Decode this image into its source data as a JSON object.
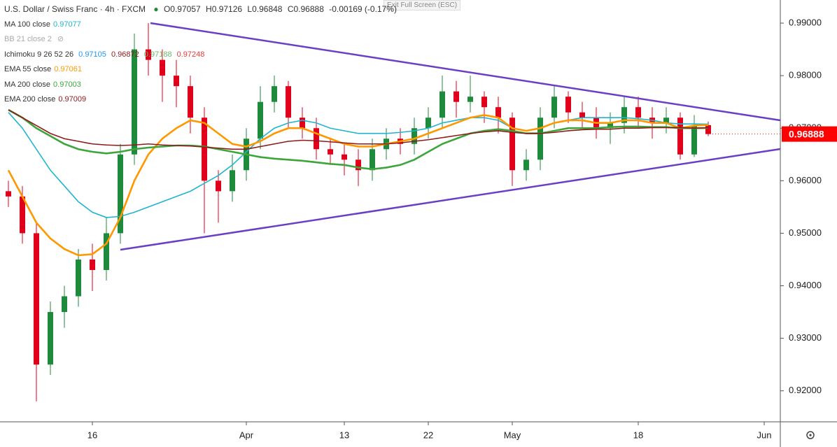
{
  "chart_data": {
    "type": "candlestick",
    "title": "U.S. Dollar / Swiss Franc · 4h · FXCM",
    "header_open": "O0.97057",
    "header_high": "H0.97126",
    "header_low": "L0.96848",
    "header_close": "C0.96888",
    "header_change": "-0.00169 (-0.17%)",
    "notice": "Exit Full Screen (ESC)",
    "up_color": "#1e8a3b",
    "down_color": "#e0001b",
    "categories": [
      null,
      null,
      null,
      null,
      null,
      null,
      "16",
      null,
      null,
      null,
      null,
      null,
      null,
      null,
      null,
      null,
      null,
      "Apr",
      null,
      null,
      null,
      null,
      null,
      null,
      "13",
      null,
      null,
      null,
      null,
      null,
      "22",
      null,
      null,
      null,
      null,
      null,
      "May",
      null,
      null,
      null,
      null,
      null,
      null,
      null,
      null,
      "18",
      null,
      null,
      null,
      null,
      null,
      null,
      null,
      null,
      "Jun"
    ],
    "open": [
      0.958,
      0.957,
      0.95,
      0.925,
      0.935,
      0.938,
      0.945,
      0.943,
      0.95,
      0.965,
      0.985,
      0.983,
      0.98,
      0.978,
      0.972,
      0.96,
      0.958,
      0.962,
      0.968,
      0.975,
      0.978,
      0.972,
      0.97,
      0.966,
      0.965,
      0.964,
      0.962,
      0.966,
      0.968,
      0.967,
      0.97,
      0.972,
      0.977,
      0.975,
      0.976,
      0.974,
      0.972,
      0.962,
      0.964,
      0.972,
      0.976,
      0.973,
      0.972,
      0.97,
      0.971,
      0.974,
      0.972,
      0.971,
      0.972,
      0.965,
      0.97057,
      null,
      null,
      null,
      null
    ],
    "high": [
      0.96,
      0.959,
      0.952,
      0.937,
      0.94,
      0.947,
      0.948,
      0.953,
      0.967,
      0.988,
      0.99,
      0.985,
      0.983,
      0.98,
      0.974,
      0.962,
      0.965,
      0.97,
      0.978,
      0.98,
      0.979,
      0.974,
      0.972,
      0.968,
      0.967,
      0.966,
      0.968,
      0.97,
      0.97,
      0.972,
      0.974,
      0.98,
      0.979,
      0.98,
      0.977,
      0.976,
      0.973,
      0.966,
      0.974,
      0.978,
      0.977,
      0.975,
      0.974,
      0.973,
      0.976,
      0.976,
      0.974,
      0.974,
      0.973,
      0.9725,
      0.97126,
      null,
      null,
      null,
      null
    ],
    "low": [
      0.955,
      0.948,
      0.918,
      0.923,
      0.932,
      0.936,
      0.939,
      0.941,
      0.948,
      0.963,
      0.98,
      0.975,
      0.974,
      0.969,
      0.95,
      0.952,
      0.956,
      0.96,
      0.966,
      0.973,
      0.97,
      0.968,
      0.964,
      0.963,
      0.961,
      0.959,
      0.96,
      0.964,
      0.965,
      0.965,
      0.968,
      0.97,
      0.972,
      0.973,
      0.971,
      0.969,
      0.959,
      0.96,
      0.962,
      0.97,
      0.971,
      0.97,
      0.968,
      0.967,
      0.969,
      0.97,
      0.968,
      0.969,
      0.964,
      0.9645,
      0.96848,
      null,
      null,
      null,
      null
    ],
    "close": [
      0.957,
      0.95,
      0.925,
      0.935,
      0.938,
      0.945,
      0.943,
      0.95,
      0.965,
      0.985,
      0.983,
      0.98,
      0.978,
      0.972,
      0.96,
      0.958,
      0.962,
      0.968,
      0.975,
      0.978,
      0.972,
      0.97,
      0.966,
      0.965,
      0.964,
      0.962,
      0.966,
      0.968,
      0.967,
      0.97,
      0.972,
      0.977,
      0.975,
      0.976,
      0.974,
      0.972,
      0.962,
      0.964,
      0.972,
      0.976,
      0.973,
      0.972,
      0.97,
      0.971,
      0.974,
      0.972,
      0.971,
      0.972,
      0.965,
      0.97057,
      0.96888,
      null,
      null,
      null,
      null
    ],
    "series": [
      {
        "name": "MA 100 close",
        "color": "#1fb5d0",
        "width": 1.6,
        "values": [
          0.973,
          0.97,
          0.966,
          0.962,
          0.959,
          0.956,
          0.954,
          0.953,
          0.9532,
          0.954,
          0.955,
          0.956,
          0.957,
          0.958,
          0.9595,
          0.961,
          0.963,
          0.9655,
          0.968,
          0.97,
          0.971,
          0.9715,
          0.971,
          0.97,
          0.9695,
          0.969,
          0.969,
          0.969,
          0.9692,
          0.9695,
          0.97,
          0.971,
          0.9715,
          0.972,
          0.972,
          0.9715,
          0.97,
          0.9695,
          0.97,
          0.971,
          0.9715,
          0.972,
          0.972,
          0.972,
          0.972,
          0.9718,
          0.9715,
          0.971,
          0.9708,
          0.9708,
          0.97077,
          null,
          null,
          null,
          null
        ]
      },
      {
        "name": "EMA 55 close",
        "color": "#ff9800",
        "width": 2.6,
        "values": [
          0.962,
          0.957,
          0.952,
          0.949,
          0.947,
          0.9458,
          0.946,
          0.948,
          0.953,
          0.96,
          0.965,
          0.968,
          0.97,
          0.9715,
          0.971,
          0.969,
          0.967,
          0.9665,
          0.9675,
          0.969,
          0.97,
          0.97,
          0.969,
          0.968,
          0.967,
          0.9665,
          0.9665,
          0.967,
          0.9675,
          0.968,
          0.969,
          0.97,
          0.971,
          0.972,
          0.9725,
          0.972,
          0.97,
          0.9695,
          0.97,
          0.971,
          0.9715,
          0.9715,
          0.971,
          0.971,
          0.9715,
          0.9715,
          0.971,
          0.971,
          0.97,
          0.9705,
          0.97061,
          null,
          null,
          null,
          null
        ]
      },
      {
        "name": "MA 200 close",
        "color": "#3ca63c",
        "width": 2.6,
        "values": [
          0.9735,
          0.972,
          0.97,
          0.9685,
          0.967,
          0.966,
          0.9655,
          0.9652,
          0.9655,
          0.966,
          0.9663,
          0.9665,
          0.9667,
          0.9667,
          0.9665,
          0.966,
          0.9655,
          0.965,
          0.9645,
          0.9642,
          0.964,
          0.9638,
          0.9635,
          0.9632,
          0.963,
          0.9625,
          0.9622,
          0.9625,
          0.963,
          0.964,
          0.9655,
          0.967,
          0.968,
          0.969,
          0.9695,
          0.9698,
          0.9695,
          0.969,
          0.969,
          0.9695,
          0.97,
          0.97,
          0.97,
          0.9702,
          0.9703,
          0.9703,
          0.9702,
          0.9702,
          0.97,
          0.97,
          0.97003,
          null,
          null,
          null,
          null
        ]
      },
      {
        "name": "EMA 200 close",
        "color": "#8e1a1a",
        "width": 1.6,
        "values": [
          0.9735,
          0.972,
          0.9705,
          0.969,
          0.968,
          0.9675,
          0.967,
          0.9668,
          0.9667,
          0.9668,
          0.967,
          0.9668,
          0.9667,
          0.9666,
          0.9664,
          0.9662,
          0.966,
          0.966,
          0.9665,
          0.967,
          0.9675,
          0.9677,
          0.9676,
          0.9674,
          0.9672,
          0.967,
          0.967,
          0.967,
          0.9672,
          0.9675,
          0.9678,
          0.9682,
          0.9686,
          0.969,
          0.9693,
          0.9695,
          0.9692,
          0.969,
          0.969,
          0.9692,
          0.9695,
          0.9697,
          0.9698,
          0.9698,
          0.97,
          0.97,
          0.9701,
          0.9701,
          0.9701,
          0.97,
          0.97009,
          null,
          null,
          null,
          null
        ]
      }
    ],
    "bb_name": "BB 21 close 2",
    "ichimoku_name": "Ichimoku 9 26 52 26",
    "ichimoku_values": [
      "0.97105",
      "0.96872",
      "0.97188",
      "0.97248"
    ],
    "ylim": [
      0.9141,
      0.9944
    ],
    "yticks": [
      {
        "value": 0.92,
        "label": "0.92000"
      },
      {
        "value": 0.93,
        "label": "0.93000"
      },
      {
        "value": 0.94,
        "label": "0.94000"
      },
      {
        "value": 0.95,
        "label": "0.95000"
      },
      {
        "value": 0.96,
        "label": "0.96000"
      },
      {
        "value": 0.97,
        "label": "0.97000"
      },
      {
        "value": 0.98,
        "label": "0.98000"
      },
      {
        "value": 0.99,
        "label": "0.99000"
      }
    ],
    "last_price_color": "#ff0000",
    "grid": false
  }
}
